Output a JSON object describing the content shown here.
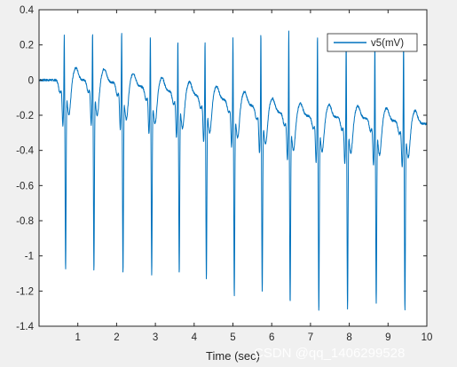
{
  "chart_data": {
    "type": "line",
    "title": "",
    "xlabel": "Time (sec)",
    "ylabel": "",
    "xlim": [
      0,
      10
    ],
    "ylim": [
      -1.4,
      0.4
    ],
    "xticks": [
      1,
      2,
      3,
      4,
      5,
      6,
      7,
      8,
      9,
      10
    ],
    "yticks": [
      0.4,
      0.2,
      0,
      -0.2,
      -0.4,
      -0.6,
      -0.8,
      -1,
      -1.2,
      -1.4
    ],
    "grid": false,
    "legend_position": "top-right",
    "series": [
      {
        "name": "v5(mV)",
        "color": "#0072bd",
        "signal_form": "periodic ECG lead v5: sharp positive R peak near +0.3 mV followed by a deep S wave; baseline drifts from about 0 at the start to about -0.25 at the end",
        "beats": [
          {
            "t": 0.65,
            "s": -1.02
          },
          {
            "t": 1.38,
            "s": -1.03
          },
          {
            "t": 2.13,
            "s": -1.04
          },
          {
            "t": 2.87,
            "s": -1.05
          },
          {
            "t": 3.58,
            "s": -1.05
          },
          {
            "t": 4.28,
            "s": -1.08
          },
          {
            "t": 5.0,
            "s": -1.17
          },
          {
            "t": 5.72,
            "s": -1.15
          },
          {
            "t": 6.44,
            "s": -1.21
          },
          {
            "t": 7.18,
            "s": -1.26
          },
          {
            "t": 7.92,
            "s": -1.25
          },
          {
            "t": 8.66,
            "s": -1.22
          },
          {
            "t": 9.4,
            "s": -1.26
          }
        ],
        "baseline": [
          [
            0,
            0.0
          ],
          [
            1.5,
            0.0
          ],
          [
            3.0,
            -0.05
          ],
          [
            5.0,
            -0.12
          ],
          [
            6.5,
            -0.2
          ],
          [
            8.5,
            -0.22
          ],
          [
            10,
            -0.25
          ]
        ]
      }
    ]
  },
  "watermark": "CSDN @qq_1406299528"
}
